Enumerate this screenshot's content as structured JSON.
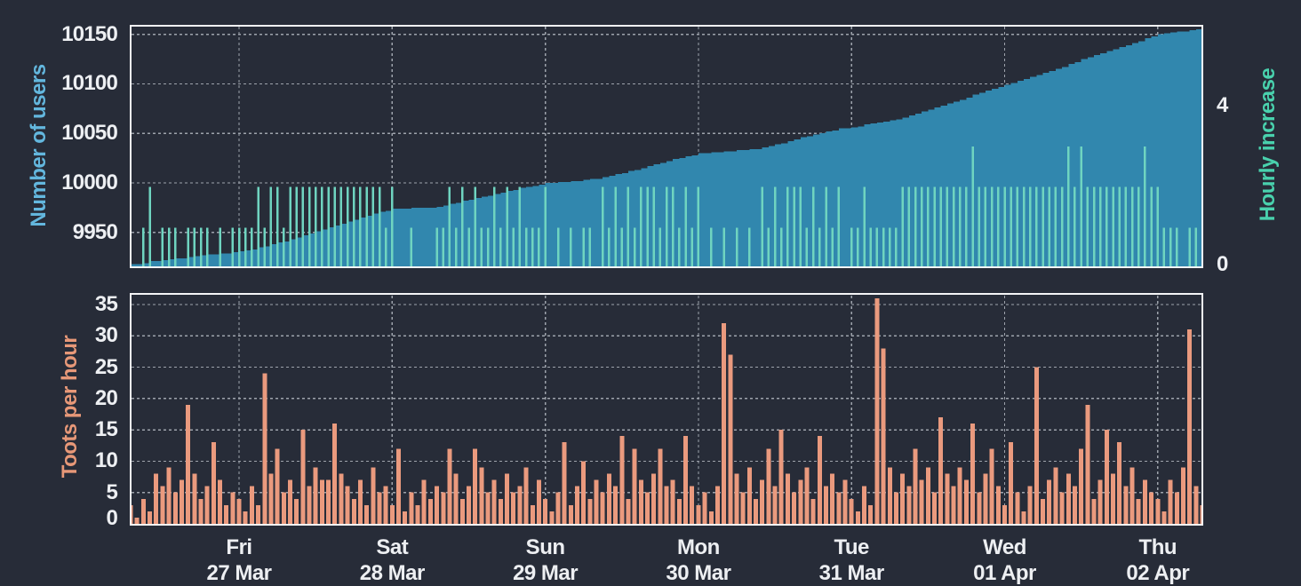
{
  "theme": {
    "background": "#272c38",
    "frame_color": "#f4f5f6",
    "grid_color": "#bcc1c9",
    "tick_text_color": "#edeff2"
  },
  "x_axis": {
    "hours_total": 168,
    "day_ticks": [
      {
        "hour": 17,
        "weekday": "Fri",
        "date": "27 Mar"
      },
      {
        "hour": 41,
        "weekday": "Sat",
        "date": "28 Mar"
      },
      {
        "hour": 65,
        "weekday": "Sun",
        "date": "29 Mar"
      },
      {
        "hour": 89,
        "weekday": "Mon",
        "date": "30 Mar"
      },
      {
        "hour": 113,
        "weekday": "Tue",
        "date": "31 Mar"
      },
      {
        "hour": 137,
        "weekday": "Wed",
        "date": "01 Apr"
      },
      {
        "hour": 161,
        "weekday": "Thu",
        "date": "02 Apr"
      }
    ]
  },
  "chart_data": [
    {
      "id": "user-growth",
      "type": "area",
      "y_left": {
        "label": "Number of users",
        "label_color": "#63b7de",
        "ticks": [
          9950,
          10000,
          10050,
          10100,
          10150
        ],
        "range": [
          9914,
          10159.5
        ]
      },
      "y_right": {
        "label": "Hourly increase",
        "label_color": "#49d1ad",
        "ticks": [
          0,
          4
        ],
        "range": [
          0,
          6
        ]
      },
      "series": [
        {
          "name": "Number of users",
          "style": "step-area",
          "color": "#3187ae",
          "start_value": 9918,
          "end_value": 10156,
          "cumulative_of": "Hourly increase"
        },
        {
          "name": "Hourly increase",
          "style": "impulses",
          "color": "#6fd4c0",
          "values": [
            0,
            0,
            1,
            2,
            0,
            1,
            1,
            1,
            0,
            1,
            1,
            1,
            1,
            0,
            1,
            0,
            1,
            1,
            1,
            1,
            2,
            1,
            2,
            2,
            1,
            2,
            2,
            2,
            2,
            2,
            2,
            2,
            2,
            2,
            2,
            2,
            2,
            2,
            2,
            2,
            1,
            2,
            0,
            0,
            1,
            0,
            0,
            0,
            1,
            1,
            2,
            1,
            2,
            1,
            2,
            1,
            1,
            2,
            1,
            2,
            1,
            2,
            1,
            1,
            1,
            2,
            0,
            1,
            0,
            1,
            0,
            1,
            1,
            0,
            2,
            1,
            2,
            1,
            2,
            1,
            2,
            2,
            2,
            1,
            2,
            2,
            1,
            2,
            1,
            2,
            0,
            1,
            0,
            1,
            0,
            1,
            0,
            1,
            0,
            2,
            1,
            2,
            1,
            2,
            2,
            2,
            1,
            2,
            1,
            2,
            1,
            2,
            0,
            1,
            1,
            2,
            1,
            1,
            1,
            1,
            1,
            2,
            2,
            2,
            2,
            2,
            2,
            2,
            2,
            2,
            2,
            2,
            3,
            2,
            2,
            2,
            2,
            2,
            2,
            2,
            2,
            2,
            2,
            2,
            2,
            2,
            2,
            3,
            2,
            3,
            2,
            2,
            2,
            2,
            2,
            2,
            2,
            2,
            2,
            3,
            2,
            2,
            1,
            1,
            1,
            0,
            1,
            1,
            1
          ]
        }
      ]
    },
    {
      "id": "toots-per-hour",
      "type": "bar",
      "y_left": {
        "label": "Toots per hour",
        "label_color": "#e79878",
        "ticks": [
          0,
          5,
          10,
          15,
          20,
          25,
          30,
          35
        ],
        "range": [
          0,
          36.5
        ]
      },
      "series": [
        {
          "name": "Toots per hour",
          "style": "bars",
          "color": "#ea9a7e",
          "values": [
            3,
            1,
            4,
            2,
            8,
            6,
            9,
            5,
            7,
            19,
            8,
            4,
            6,
            13,
            7,
            3,
            5,
            4,
            2,
            6,
            3,
            24,
            8,
            12,
            5,
            7,
            4,
            15,
            6,
            9,
            7,
            7,
            16,
            8,
            6,
            4,
            7,
            3,
            9,
            5,
            6,
            3,
            12,
            2,
            5,
            3,
            7,
            4,
            6,
            5,
            12,
            8,
            4,
            6,
            12,
            9,
            5,
            7,
            4,
            8,
            5,
            6,
            9,
            3,
            7,
            4,
            2,
            5,
            13,
            3,
            6,
            10,
            4,
            7,
            5,
            8,
            6,
            14,
            4,
            12,
            7,
            5,
            8,
            12,
            6,
            7,
            4,
            14,
            6,
            3,
            5,
            2,
            6,
            32,
            27,
            8,
            5,
            9,
            4,
            7,
            12,
            6,
            15,
            8,
            5,
            7,
            9,
            4,
            14,
            6,
            8,
            5,
            7,
            4,
            2,
            6,
            3,
            36,
            28,
            9,
            5,
            8,
            6,
            12,
            7,
            9,
            5,
            17,
            8,
            6,
            9,
            7,
            16,
            5,
            8,
            12,
            6,
            3,
            13,
            5,
            2,
            6,
            25,
            4,
            7,
            9,
            5,
            8,
            6,
            12,
            19,
            4,
            7,
            15,
            8,
            13,
            6,
            9,
            4,
            7,
            5,
            4,
            2,
            7,
            5,
            9,
            31,
            6,
            3
          ]
        }
      ]
    }
  ]
}
